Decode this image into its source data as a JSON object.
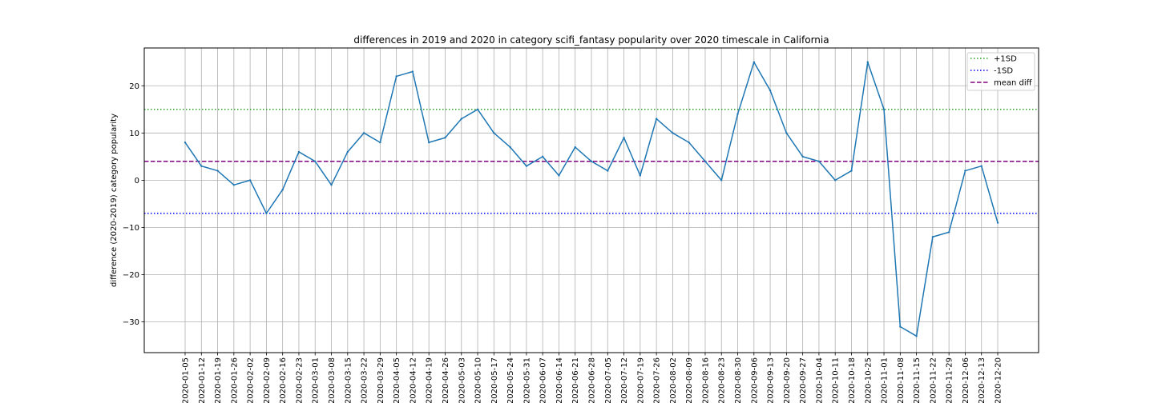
{
  "chart_data": {
    "type": "line",
    "title": "differences in 2019 and 2020 in category scifi_fantasy popularity over 2020 timescale in California",
    "xlabel": "",
    "ylabel": "difference (2020-2019) category popularity",
    "x": [
      "2020-01-05",
      "2020-01-12",
      "2020-01-19",
      "2020-01-26",
      "2020-02-02",
      "2020-02-09",
      "2020-02-16",
      "2020-02-23",
      "2020-03-01",
      "2020-03-08",
      "2020-03-15",
      "2020-03-22",
      "2020-03-29",
      "2020-04-05",
      "2020-04-12",
      "2020-04-19",
      "2020-04-26",
      "2020-05-03",
      "2020-05-10",
      "2020-05-17",
      "2020-05-24",
      "2020-05-31",
      "2020-06-07",
      "2020-06-14",
      "2020-06-21",
      "2020-06-28",
      "2020-07-05",
      "2020-07-12",
      "2020-07-19",
      "2020-07-26",
      "2020-08-02",
      "2020-08-09",
      "2020-08-16",
      "2020-08-23",
      "2020-08-30",
      "2020-09-06",
      "2020-09-13",
      "2020-09-20",
      "2020-09-27",
      "2020-10-04",
      "2020-10-11",
      "2020-10-18",
      "2020-10-25",
      "2020-11-01",
      "2020-11-08",
      "2020-11-15",
      "2020-11-22",
      "2020-11-29",
      "2020-12-06",
      "2020-12-13",
      "2020-12-20"
    ],
    "series": [
      {
        "name": "",
        "color": "#1f77b4",
        "values": [
          8,
          3,
          2,
          -1,
          0,
          -7,
          -2,
          6,
          4,
          -1,
          6,
          10,
          8,
          22,
          23,
          8,
          9,
          13,
          15,
          10,
          7,
          3,
          5,
          1,
          7,
          4,
          2,
          9,
          1,
          13,
          10,
          8,
          4,
          0,
          14,
          25,
          19,
          10,
          5,
          4,
          0,
          2,
          25,
          15,
          -31,
          -33,
          -12,
          -11,
          2,
          3,
          -9
        ]
      }
    ],
    "reference_lines": [
      {
        "name": "+1SD",
        "value": 15,
        "color": "#2ca02c",
        "style": "dotted"
      },
      {
        "name": "-1SD",
        "value": -7,
        "color": "#0000ff",
        "style": "dotted"
      },
      {
        "name": "mean diff",
        "value": 4,
        "color": "#800080",
        "style": "dashed"
      }
    ],
    "y_ticks": [
      -30,
      -20,
      -10,
      0,
      10,
      20
    ],
    "y_tick_labels": [
      "−30",
      "−20",
      "−10",
      "0",
      "10",
      "20"
    ],
    "ylim": [
      -36.5,
      28
    ],
    "grid": true,
    "legend_position": "top-right"
  }
}
